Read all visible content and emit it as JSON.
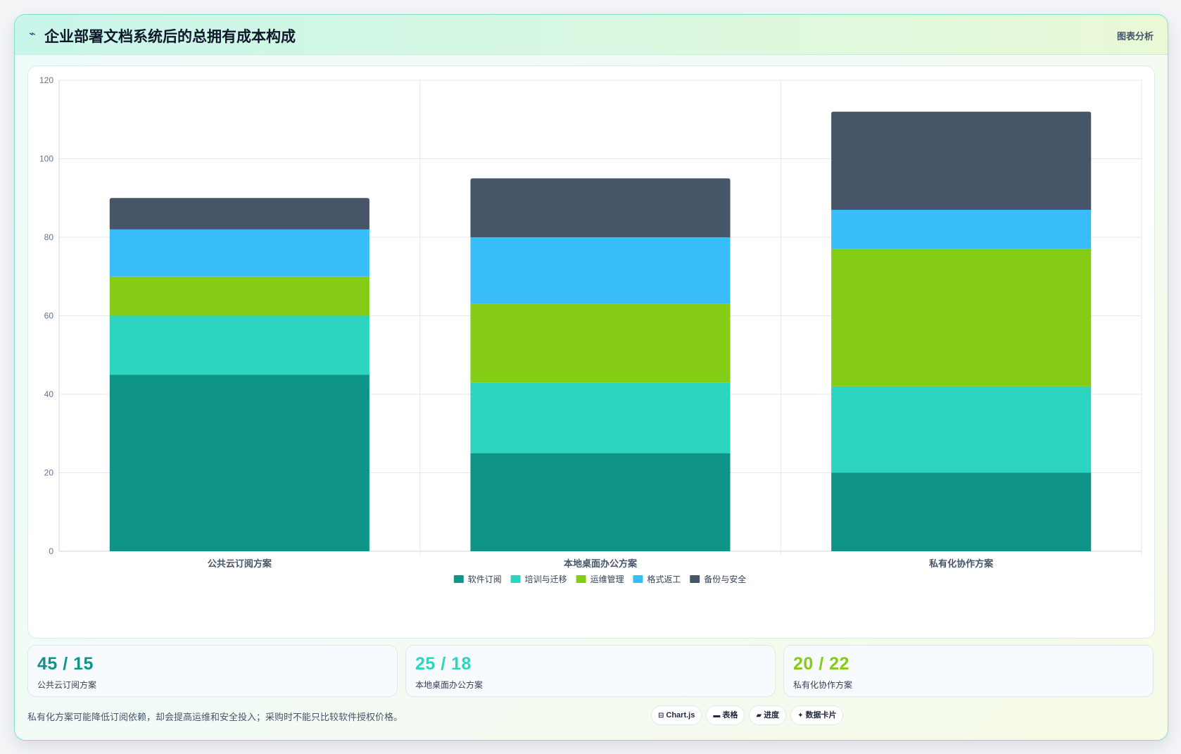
{
  "header": {
    "title": "企业部署文档系统后的总拥有成本构成",
    "title_icon": "trend-line-icon",
    "tag": "图表分析"
  },
  "chart_data": {
    "type": "bar",
    "stacked": true,
    "categories": [
      "公共云订阅方案",
      "本地桌面办公方案",
      "私有化协作方案"
    ],
    "series": [
      {
        "name": "软件订阅",
        "color": "#0f9488",
        "values": [
          45,
          25,
          20
        ]
      },
      {
        "name": "培训与迁移",
        "color": "#2dd4bf",
        "values": [
          15,
          18,
          22
        ]
      },
      {
        "name": "运维管理",
        "color": "#84cc16",
        "values": [
          10,
          20,
          35
        ]
      },
      {
        "name": "格式返工",
        "color": "#38bdf8",
        "values": [
          12,
          17,
          10
        ]
      },
      {
        "name": "备份与安全",
        "color": "#475569",
        "values": [
          8,
          15,
          25
        ]
      }
    ],
    "ylim": [
      0,
      120
    ],
    "yticks": [
      0,
      20,
      40,
      60,
      80,
      100,
      120
    ],
    "grid": true,
    "legend_position": "bottom"
  },
  "stats": [
    {
      "value": "45 / 15",
      "label": "公共云订阅方案",
      "color": "#0f9488"
    },
    {
      "value": "25 / 18",
      "label": "本地桌面办公方案",
      "color": "#2dd4bf"
    },
    {
      "value": "20 / 22",
      "label": "私有化协作方案",
      "color": "#84cc16"
    }
  ],
  "footnote": "私有化方案可能降低订阅依赖，却会提高运维和安全投入；采购时不能只比较软件授权价格。",
  "toolbar": {
    "chartjs": {
      "icon": "chart-icon",
      "glyph": "⊟",
      "label": "Chart.js"
    },
    "table": {
      "icon": "table-icon",
      "glyph": "▬",
      "label": "表格"
    },
    "progress": {
      "icon": "progress-icon",
      "glyph": "▰",
      "label": "进度"
    },
    "cards": {
      "icon": "sparkle-icon",
      "glyph": "✦",
      "label": "数据卡片"
    }
  }
}
